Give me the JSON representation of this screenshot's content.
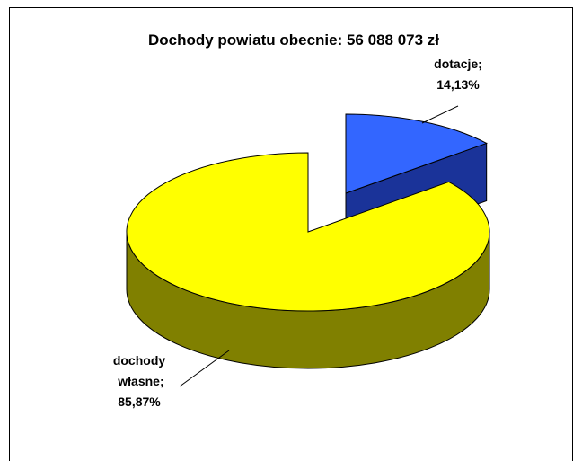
{
  "chart_data": {
    "type": "pie3d",
    "title": "Dochody powiatu obecnie: 56 088 073 zł",
    "categories": [
      "dotacje;",
      "dochody własne;"
    ],
    "values": [
      14.13,
      85.87
    ],
    "value_labels": [
      "14,13%",
      "85,87%"
    ],
    "colors": [
      "#3366ff",
      "#ffff00"
    ],
    "side_colors": [
      "#1a3399",
      "#808000"
    ]
  }
}
